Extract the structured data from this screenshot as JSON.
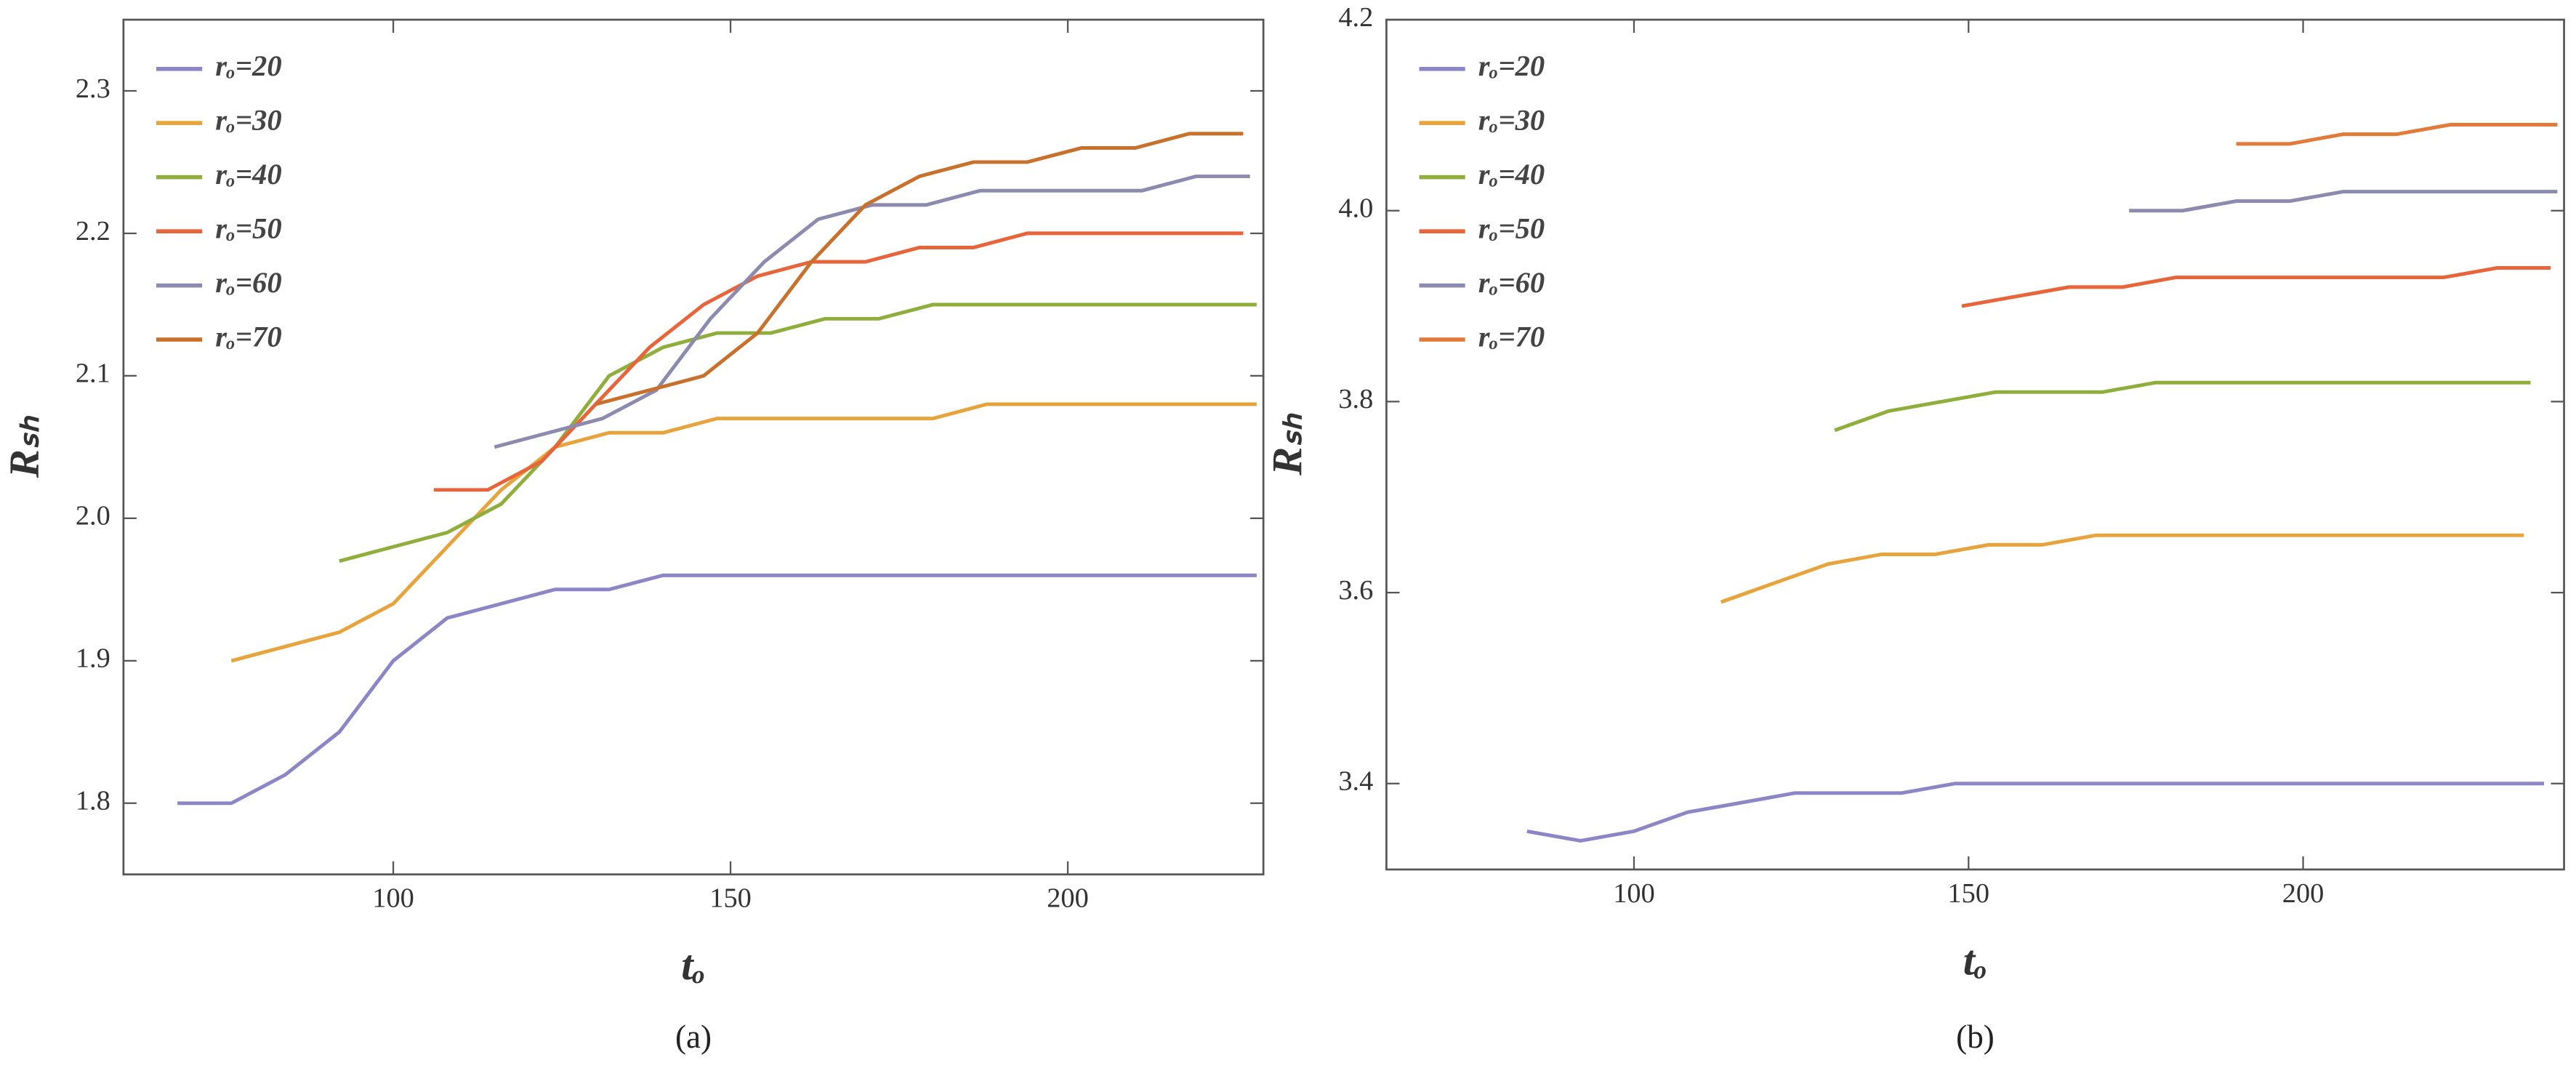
{
  "chart_data": [
    {
      "type": "line",
      "caption": "(a)",
      "xlabel": "tₒ",
      "ylabel": "Rₛₕ",
      "xlim": [
        60,
        229
      ],
      "xticks": [
        100,
        150,
        200
      ],
      "ylim": [
        1.75,
        2.35
      ],
      "yticks": [
        1.8,
        1.9,
        {
          "value": 2,
          "label": "2.0"
        },
        2.1,
        2.2,
        2.3
      ],
      "legend": "top-left",
      "series": [
        {
          "name": "rₒ=20",
          "color": "#8b86c6",
          "x": [
            68,
            76,
            84,
            92,
            100,
            108,
            116,
            124,
            132,
            140,
            148,
            156,
            164,
            172,
            180,
            188,
            196,
            204,
            212,
            220,
            228
          ],
          "values": [
            1.8,
            1.8,
            1.82,
            1.85,
            1.9,
            1.93,
            1.94,
            1.95,
            1.95,
            1.96,
            1.96,
            1.96,
            1.96,
            1.96,
            1.96,
            1.96,
            1.96,
            1.96,
            1.96,
            1.96,
            1.96
          ]
        },
        {
          "name": "rₒ=30",
          "color": "#e8a43c",
          "x": [
            76,
            84,
            92,
            100,
            108,
            116,
            124,
            132,
            140,
            148,
            156,
            164,
            172,
            180,
            188,
            196,
            204,
            212,
            220,
            228
          ],
          "values": [
            1.9,
            1.91,
            1.92,
            1.94,
            1.98,
            2.02,
            2.05,
            2.06,
            2.06,
            2.07,
            2.07,
            2.07,
            2.07,
            2.07,
            2.08,
            2.08,
            2.08,
            2.08,
            2.08,
            2.08
          ]
        },
        {
          "name": "rₒ=40",
          "color": "#8fae3c",
          "x": [
            92,
            100,
            108,
            116,
            124,
            132,
            140,
            148,
            156,
            164,
            172,
            180,
            188,
            196,
            204,
            212,
            220,
            228
          ],
          "values": [
            1.97,
            1.98,
            1.99,
            2.01,
            2.05,
            2.1,
            2.12,
            2.13,
            2.13,
            2.14,
            2.14,
            2.15,
            2.15,
            2.15,
            2.15,
            2.15,
            2.15,
            2.15
          ]
        },
        {
          "name": "rₒ=50",
          "color": "#e8643a",
          "x": [
            106,
            114,
            122,
            130,
            138,
            146,
            154,
            162,
            170,
            178,
            186,
            194,
            202,
            210,
            218,
            226
          ],
          "values": [
            2.02,
            2.02,
            2.04,
            2.08,
            2.12,
            2.15,
            2.17,
            2.18,
            2.18,
            2.19,
            2.19,
            2.2,
            2.2,
            2.2,
            2.2,
            2.2
          ]
        },
        {
          "name": "rₒ=60",
          "color": "#8c8aae",
          "x": [
            115,
            123,
            131,
            139,
            147,
            155,
            163,
            171,
            179,
            187,
            195,
            203,
            211,
            219,
            227
          ],
          "values": [
            2.05,
            2.06,
            2.07,
            2.09,
            2.14,
            2.18,
            2.21,
            2.22,
            2.22,
            2.23,
            2.23,
            2.23,
            2.23,
            2.24,
            2.24
          ]
        },
        {
          "name": "rₒ=70",
          "color": "#c8712c",
          "x": [
            130,
            138,
            146,
            154,
            162,
            170,
            178,
            186,
            194,
            202,
            210,
            218,
            226
          ],
          "values": [
            2.08,
            2.09,
            2.1,
            2.13,
            2.18,
            2.22,
            2.24,
            2.25,
            2.25,
            2.26,
            2.26,
            2.27,
            2.27
          ]
        }
      ]
    },
    {
      "type": "line",
      "caption": "(b)",
      "xlabel": "tₒ",
      "ylabel": "Rₛₕ",
      "xlim": [
        63,
        239
      ],
      "xticks": [
        100,
        150,
        200
      ],
      "ylim": [
        3.31,
        4.2
      ],
      "yticks": [
        3.4,
        3.6,
        3.8,
        {
          "value": 4,
          "label": "4.0"
        },
        4.2
      ],
      "legend": "top-left",
      "series": [
        {
          "name": "rₒ=20",
          "color": "#8b86c6",
          "x": [
            84,
            92,
            100,
            108,
            116,
            124,
            132,
            140,
            148,
            156,
            164,
            172,
            180,
            188,
            196,
            204,
            212,
            220,
            228,
            236
          ],
          "values": [
            3.35,
            3.34,
            3.35,
            3.37,
            3.38,
            3.39,
            3.39,
            3.39,
            3.4,
            3.4,
            3.4,
            3.4,
            3.4,
            3.4,
            3.4,
            3.4,
            3.4,
            3.4,
            3.4,
            3.4
          ]
        },
        {
          "name": "rₒ=30",
          "color": "#e8a43c",
          "x": [
            113,
            121,
            129,
            137,
            145,
            153,
            161,
            169,
            177,
            185,
            193,
            201,
            209,
            217,
            225,
            233
          ],
          "values": [
            3.59,
            3.61,
            3.63,
            3.64,
            3.64,
            3.65,
            3.65,
            3.66,
            3.66,
            3.66,
            3.66,
            3.66,
            3.66,
            3.66,
            3.66,
            3.66
          ]
        },
        {
          "name": "rₒ=40",
          "color": "#8fae3c",
          "x": [
            130,
            138,
            146,
            154,
            162,
            170,
            178,
            186,
            194,
            202,
            210,
            218,
            226,
            234
          ],
          "values": [
            3.77,
            3.79,
            3.8,
            3.81,
            3.81,
            3.81,
            3.82,
            3.82,
            3.82,
            3.82,
            3.82,
            3.82,
            3.82,
            3.82
          ]
        },
        {
          "name": "rₒ=50",
          "color": "#e8643a",
          "x": [
            149,
            157,
            165,
            173,
            181,
            189,
            197,
            205,
            213,
            221,
            229,
            237
          ],
          "values": [
            3.9,
            3.91,
            3.92,
            3.92,
            3.93,
            3.93,
            3.93,
            3.93,
            3.93,
            3.93,
            3.94,
            3.94
          ]
        },
        {
          "name": "rₒ=60",
          "color": "#8c8aae",
          "x": [
            174,
            182,
            190,
            198,
            206,
            214,
            222,
            230,
            238
          ],
          "values": [
            4,
            4,
            4.01,
            4.01,
            4.02,
            4.02,
            4.02,
            4.02,
            4.02
          ]
        },
        {
          "name": "rₒ=70",
          "color": "#e27a3a",
          "x": [
            190,
            198,
            206,
            214,
            222,
            230,
            238
          ],
          "values": [
            4.07,
            4.07,
            4.08,
            4.08,
            4.09,
            4.09,
            4.09
          ]
        }
      ]
    }
  ]
}
